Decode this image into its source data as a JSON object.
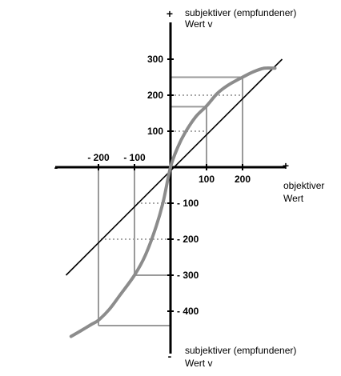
{
  "chart_data": {
    "type": "line",
    "xlabel": [
      "objektiver",
      "Wert"
    ],
    "ylabel_top": [
      "subjektiver (empfundener)",
      "Wert v"
    ],
    "ylabel_bottom": [
      "subjektiver (empfundener)",
      "Wert v"
    ],
    "axis_signs": {
      "x_neg": "-",
      "x_pos": "+",
      "y_pos": "+",
      "y_neg": "-"
    },
    "xlim": [
      -320,
      320
    ],
    "ylim": [
      -520,
      420
    ],
    "x_ticks": [
      {
        "value": -200,
        "label": "- 200"
      },
      {
        "value": -100,
        "label": "- 100"
      },
      {
        "value": 100,
        "label": "100"
      },
      {
        "value": 200,
        "label": "200"
      }
    ],
    "y_ticks": [
      {
        "value": 300,
        "label": "300"
      },
      {
        "value": 200,
        "label": "200"
      },
      {
        "value": 100,
        "label": "100"
      },
      {
        "value": -100,
        "label": "- 100"
      },
      {
        "value": -200,
        "label": "- 200"
      },
      {
        "value": -300,
        "label": "- 300"
      },
      {
        "value": -400,
        "label": "- 400"
      }
    ],
    "series": [
      {
        "kind": "value-function",
        "color": "#8c8c8c",
        "x": [
          -276,
          -250,
          -220,
          -200,
          -170,
          -140,
          -100,
          -70,
          -40,
          -20,
          0,
          20,
          40,
          70,
          100,
          130,
          160,
          200,
          230,
          260,
          290
        ],
        "y": [
          -470,
          -455,
          -437,
          -425,
          -395,
          -355,
          -300,
          -245,
          -165,
          -95,
          0,
          55,
          95,
          140,
          170,
          205,
          228,
          250,
          265,
          275,
          275
        ]
      },
      {
        "kind": "reference-diagonal",
        "color": "#000000",
        "x": [
          -290,
          310
        ],
        "y": [
          -300,
          300
        ]
      }
    ],
    "guides": [
      {
        "x": 100,
        "y": 168
      },
      {
        "x": 200,
        "y": 250
      },
      {
        "x": -100,
        "y": -300
      },
      {
        "x": -200,
        "y": -440
      }
    ],
    "dotted_guides": [
      {
        "x": 100,
        "y": 100
      },
      {
        "x": 200,
        "y": 200
      },
      {
        "x": -100,
        "y": -100
      },
      {
        "x": -200,
        "y": -200
      }
    ]
  }
}
